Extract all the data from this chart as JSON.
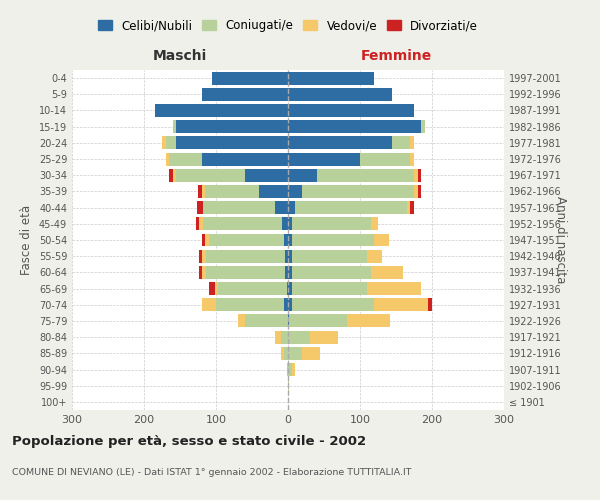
{
  "age_groups": [
    "100+",
    "95-99",
    "90-94",
    "85-89",
    "80-84",
    "75-79",
    "70-74",
    "65-69",
    "60-64",
    "55-59",
    "50-54",
    "45-49",
    "40-44",
    "35-39",
    "30-34",
    "25-29",
    "20-24",
    "15-19",
    "10-14",
    "5-9",
    "0-4"
  ],
  "birth_years": [
    "≤ 1901",
    "1902-1906",
    "1907-1911",
    "1912-1916",
    "1917-1921",
    "1922-1926",
    "1927-1931",
    "1932-1936",
    "1937-1941",
    "1942-1946",
    "1947-1951",
    "1952-1956",
    "1957-1961",
    "1962-1966",
    "1967-1971",
    "1972-1976",
    "1977-1981",
    "1982-1986",
    "1987-1991",
    "1992-1996",
    "1997-2001"
  ],
  "male": {
    "celibi": [
      0,
      0,
      0,
      0,
      0,
      0,
      5,
      2,
      4,
      4,
      5,
      8,
      18,
      40,
      60,
      120,
      155,
      155,
      185,
      120,
      105
    ],
    "coniugati": [
      0,
      0,
      1,
      5,
      10,
      60,
      95,
      95,
      110,
      110,
      105,
      110,
      100,
      75,
      95,
      45,
      15,
      5,
      0,
      0,
      0
    ],
    "vedovi": [
      0,
      0,
      0,
      5,
      8,
      10,
      20,
      5,
      5,
      5,
      5,
      5,
      0,
      5,
      5,
      5,
      5,
      0,
      0,
      0,
      0
    ],
    "divorziati": [
      0,
      0,
      0,
      0,
      0,
      0,
      0,
      8,
      5,
      5,
      5,
      5,
      8,
      5,
      5,
      0,
      0,
      0,
      0,
      0,
      0
    ]
  },
  "female": {
    "nubili": [
      0,
      0,
      0,
      0,
      0,
      2,
      5,
      5,
      5,
      5,
      5,
      5,
      10,
      20,
      40,
      100,
      145,
      185,
      175,
      145,
      120
    ],
    "coniugate": [
      0,
      2,
      5,
      20,
      30,
      80,
      115,
      105,
      110,
      105,
      115,
      110,
      155,
      155,
      135,
      70,
      25,
      5,
      0,
      0,
      0
    ],
    "vedove": [
      0,
      0,
      5,
      25,
      40,
      60,
      75,
      75,
      45,
      20,
      20,
      10,
      5,
      5,
      5,
      5,
      5,
      0,
      0,
      0,
      0
    ],
    "divorziate": [
      0,
      0,
      0,
      0,
      0,
      0,
      5,
      0,
      0,
      0,
      0,
      0,
      5,
      5,
      5,
      0,
      0,
      0,
      0,
      0,
      0
    ]
  },
  "colors": {
    "celibi": "#2e6da4",
    "coniugati": "#b8d09a",
    "vedovi": "#f5c96a",
    "divorziati": "#cc2222"
  },
  "title": "Popolazione per età, sesso e stato civile - 2002",
  "subtitle": "COMUNE DI NEVIANO (LE) - Dati ISTAT 1° gennaio 2002 - Elaborazione TUTTITALIA.IT",
  "xlabel_left": "Maschi",
  "xlabel_right": "Femmine",
  "ylabel_left": "Fasce di età",
  "ylabel_right": "Anni di nascita",
  "xlim": 300,
  "bg_color": "#f0f0eb",
  "plot_bg_color": "#ffffff",
  "legend_labels": [
    "Celibi/Nubili",
    "Coniugati/e",
    "Vedovi/e",
    "Divorziati/e"
  ]
}
